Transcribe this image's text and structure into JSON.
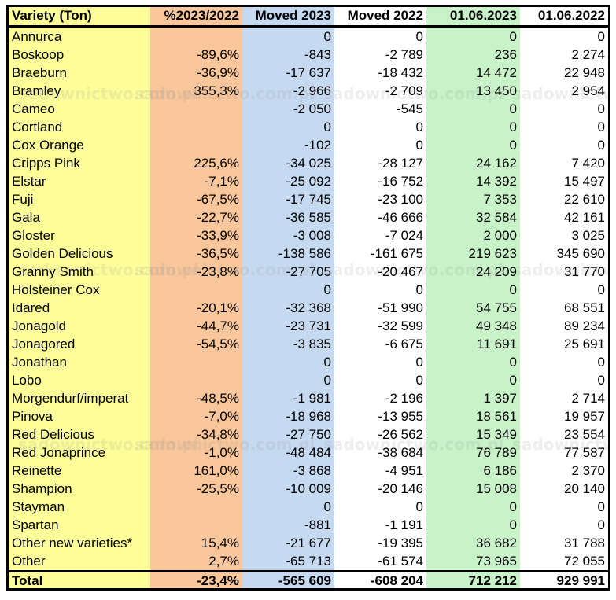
{
  "chart_data": {
    "type": "table",
    "columns": [
      "Variety (Ton)",
      "%2023/2022",
      "Moved 2023",
      "Moved 2022",
      "01.06.2023",
      "01.06.2022"
    ],
    "rows": [
      [
        "Annurca",
        "",
        "0",
        "0",
        "0",
        "0"
      ],
      [
        "Boskoop",
        "-89,6%",
        "-843",
        "-2 789",
        "236",
        "2 274"
      ],
      [
        "Braeburn",
        "-36,9%",
        "-17 637",
        "-18 432",
        "14 472",
        "22 948"
      ],
      [
        "Bramley",
        "355,3%",
        "-2 966",
        "-2 709",
        "13 450",
        "2 954"
      ],
      [
        "Cameo",
        "",
        "-2 050",
        "-545",
        "0",
        "0"
      ],
      [
        "Cortland",
        "",
        "0",
        "0",
        "0",
        "0"
      ],
      [
        "Cox Orange",
        "",
        "-102",
        "0",
        "0",
        "0"
      ],
      [
        "Cripps Pink",
        "225,6%",
        "-34 025",
        "-28 127",
        "24 162",
        "7 420"
      ],
      [
        "Elstar",
        "-7,1%",
        "-25 092",
        "-16 752",
        "14 392",
        "15 497"
      ],
      [
        "Fuji",
        "-67,5%",
        "-17 745",
        "-23 100",
        "7 353",
        "22 610"
      ],
      [
        "Gala",
        "-22,7%",
        "-36 585",
        "-46 666",
        "32 584",
        "42 161"
      ],
      [
        "Gloster",
        "-33,9%",
        "-3 008",
        "-7 024",
        "2 000",
        "3 025"
      ],
      [
        "Golden Delicious",
        "-36,5%",
        "-138 586",
        "-161 675",
        "219 623",
        "345 690"
      ],
      [
        "Granny Smith",
        "-23,8%",
        "-27 705",
        "-20 467",
        "24 209",
        "31 770"
      ],
      [
        "Holsteiner Cox",
        "",
        "0",
        "0",
        "0",
        "0"
      ],
      [
        "Idared",
        "-20,1%",
        "-32 368",
        "-51 990",
        "54 755",
        "68 551"
      ],
      [
        "Jonagold",
        "-44,7%",
        "-23 731",
        "-32 599",
        "49 348",
        "89 234"
      ],
      [
        "Jonagored",
        "-54,5%",
        "-3 835",
        "-6 675",
        "11 691",
        "25 691"
      ],
      [
        "Jonathan",
        "",
        "0",
        "0",
        "0",
        "0"
      ],
      [
        "Lobo",
        "",
        "0",
        "0",
        "0",
        "0"
      ],
      [
        "Morgendurf/imperat",
        "-48,5%",
        "-1 981",
        "-2 196",
        "1 397",
        "2 714"
      ],
      [
        "Pinova",
        "-7,0%",
        "-18 968",
        "-13 955",
        "18 561",
        "19 957"
      ],
      [
        "Red Delicious",
        "-34,8%",
        "-27 750",
        "-26 562",
        "15 349",
        "23 554"
      ],
      [
        "Red Jonaprince",
        "-1,0%",
        "-48 484",
        "-38 684",
        "76 789",
        "77 587"
      ],
      [
        "Reinette",
        "161,0%",
        "-3 868",
        "-4 951",
        "6 186",
        "2 370"
      ],
      [
        "Shampion",
        "-25,5%",
        "-10 009",
        "-20 146",
        "15 008",
        "20 140"
      ],
      [
        "Stayman",
        "",
        "0",
        "0",
        "0",
        "0"
      ],
      [
        "Spartan",
        "",
        "-881",
        "-1 191",
        "0",
        "0"
      ],
      [
        "Other new varieties*",
        "15,4%",
        "-21 677",
        "-19 395",
        "36 682",
        "31 788"
      ],
      [
        "Other",
        "2,7%",
        "-65 713",
        "-61 574",
        "73 965",
        "72 055"
      ]
    ],
    "total": [
      "Total",
      "-23,4%",
      "-565 609",
      "-608 204",
      "712 212",
      "929 991"
    ],
    "column_colors": [
      "#fdfd9a",
      "#f9c79b",
      "#c5d9f1",
      "#ffffff",
      "#c8f2c8",
      "#ffffff"
    ]
  },
  "watermark": "sadownictwo.com.pl"
}
